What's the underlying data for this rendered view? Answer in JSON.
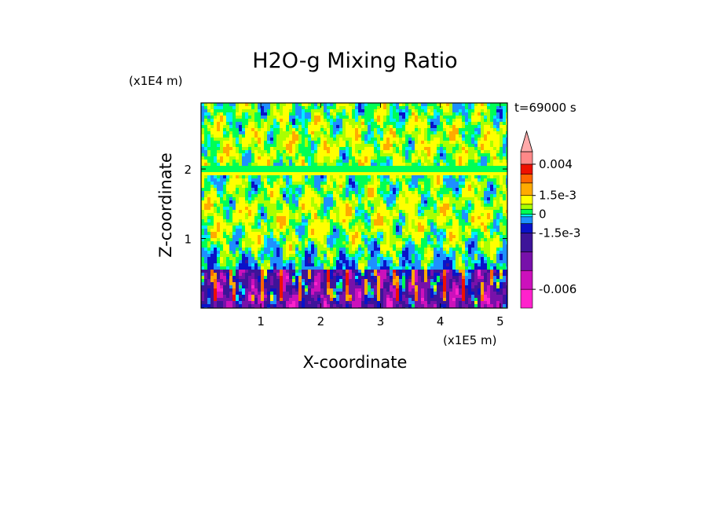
{
  "chart_data": {
    "type": "heatmap",
    "title": "H2O-g Mixing Ratio",
    "xlabel": "X-coordinate",
    "ylabel": "Z-coordinate",
    "x_scale_label": "(x1E5 m)",
    "y_scale_label": "(x1E4 m)",
    "time_label": "t=69000 s",
    "xlim": [
      0,
      5.12
    ],
    "ylim": [
      0,
      2.95
    ],
    "x_ticks": [
      1,
      2,
      3,
      4,
      5
    ],
    "y_ticks": [
      1,
      2
    ],
    "x_tick_labels": [
      "1",
      "2",
      "3",
      "4",
      "5"
    ],
    "y_tick_labels": [
      "1",
      "2"
    ],
    "colorbar": {
      "extend": "max",
      "tick_labels": [
        {
          "text": "0.004",
          "value": 0.004
        },
        {
          "text": "1.5e-3",
          "value": 0.0015
        },
        {
          "text": "0",
          "value": 0
        },
        {
          "text": "-1.5e-3",
          "value": -0.0015
        },
        {
          "text": "-0.006",
          "value": -0.006
        }
      ],
      "bands": [
        {
          "lo": -0.0075,
          "hi": -0.006,
          "color": "#ff22cc"
        },
        {
          "lo": -0.006,
          "hi": -0.0045,
          "color": "#cc11bb"
        },
        {
          "lo": -0.0045,
          "hi": -0.003,
          "color": "#7711aa"
        },
        {
          "lo": -0.003,
          "hi": -0.0015,
          "color": "#3d1499"
        },
        {
          "lo": -0.0015,
          "hi": -0.00075,
          "color": "#0a12c8"
        },
        {
          "lo": -0.00075,
          "hi": -0.0002,
          "color": "#1e90ff"
        },
        {
          "lo": -0.0002,
          "hi": 0,
          "color": "#00eeff"
        },
        {
          "lo": 0,
          "hi": 0.0004,
          "color": "#00ff55"
        },
        {
          "lo": 0.0004,
          "hi": 0.0008,
          "color": "#aaff00"
        },
        {
          "lo": 0.0008,
          "hi": 0.0015,
          "color": "#ffff00"
        },
        {
          "lo": 0.0015,
          "hi": 0.0025,
          "color": "#ffaa00"
        },
        {
          "lo": 0.0025,
          "hi": 0.0032,
          "color": "#ff6600"
        },
        {
          "lo": 0.0032,
          "hi": 0.004,
          "color": "#ee1100"
        },
        {
          "lo": 0.004,
          "hi": 0.005,
          "color": "#ff8888"
        }
      ],
      "extend_color": "#ffaaaa"
    }
  }
}
